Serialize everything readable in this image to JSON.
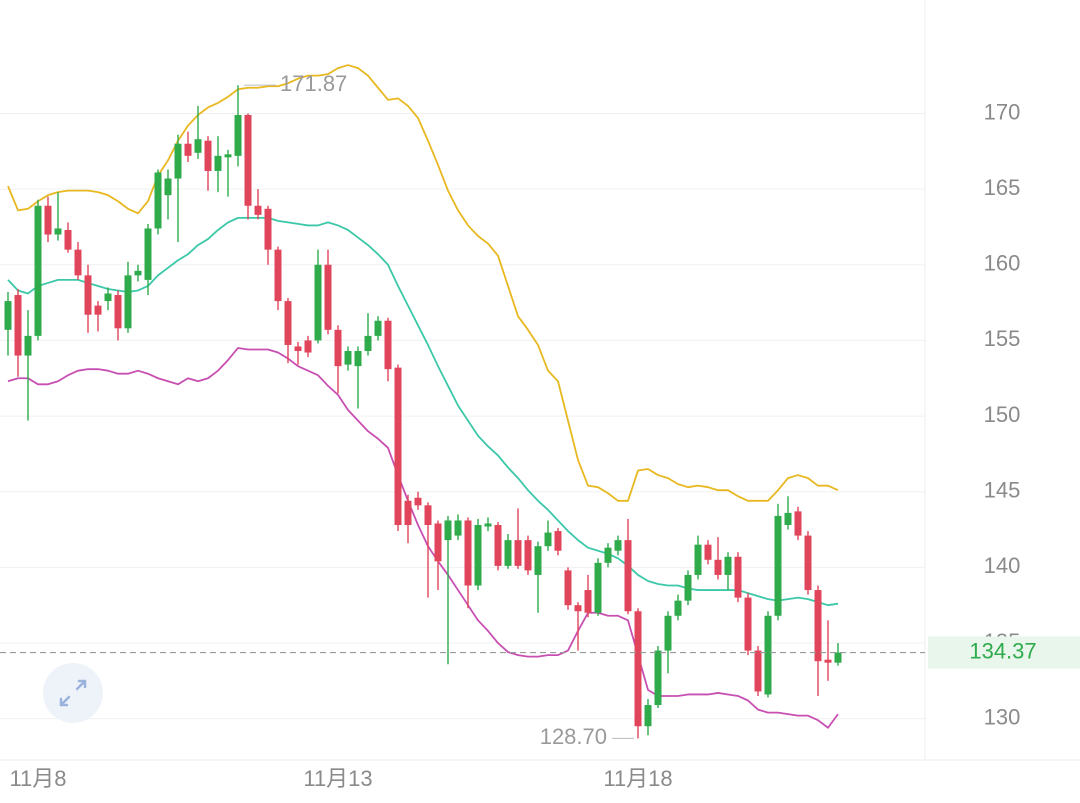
{
  "chart_data": {
    "type": "candlestick",
    "categories": [
      null,
      null,
      null,
      "11月8",
      null,
      null,
      null,
      null,
      null,
      null,
      null,
      null,
      null,
      null,
      null,
      null,
      null,
      null,
      null,
      null,
      null,
      null,
      null,
      null,
      null,
      null,
      null,
      null,
      null,
      null,
      null,
      null,
      null,
      "11月13",
      null,
      null,
      null,
      null,
      null,
      null,
      null,
      null,
      null,
      null,
      null,
      null,
      null,
      null,
      null,
      null,
      null,
      null,
      null,
      null,
      null,
      null,
      null,
      null,
      null,
      null,
      null,
      null,
      null,
      "11月18",
      null,
      null,
      null,
      null,
      null,
      null,
      null,
      null,
      null,
      null,
      null,
      null,
      null,
      null,
      null,
      null,
      null,
      null,
      null,
      null
    ],
    "open": [
      155.7,
      158.0,
      154.0,
      155.3,
      163.9,
      162.0,
      162.3,
      161.0,
      159.3,
      157.3,
      157.6,
      158.0,
      155.8,
      159.3,
      159.0,
      162.4,
      164.6,
      165.7,
      168.0,
      167.4,
      168.2,
      166.2,
      167.1,
      167.2,
      169.9,
      163.9,
      163.7,
      161.0,
      157.6,
      154.6,
      155.0,
      155.0,
      160.0,
      155.7,
      153.4,
      153.3,
      154.3,
      155.3,
      156.3,
      153.2,
      144.4,
      144.6,
      144.1,
      142.9,
      141.8,
      142.1,
      143.1,
      138.8,
      142.7,
      142.8,
      140.1,
      141.8,
      141.8,
      139.5,
      141.4,
      142.4,
      139.8,
      137.5,
      138.5,
      137.0,
      140.3,
      141.1,
      141.8,
      137.1,
      129.5,
      130.9,
      134.5,
      136.8,
      137.8,
      139.5,
      141.5,
      140.5,
      139.5,
      140.7,
      138.0,
      134.5,
      131.6,
      136.8,
      142.8,
      143.7,
      142.1,
      138.5,
      133.9,
      133.7
    ],
    "high": [
      158.2,
      158.4,
      157.0,
      164.3,
      164.5,
      164.8,
      162.8,
      161.5,
      160.0,
      157.6,
      158.5,
      158.3,
      160.2,
      160.0,
      162.7,
      166.3,
      166.3,
      168.6,
      168.8,
      170.5,
      168.5,
      168.5,
      167.6,
      171.87,
      170.0,
      165.0,
      163.9,
      161.2,
      157.8,
      154.9,
      155.3,
      161.0,
      161.0,
      156.0,
      154.6,
      154.6,
      156.8,
      156.6,
      156.5,
      153.4,
      144.8,
      145.0,
      144.3,
      143.1,
      143.4,
      143.5,
      143.3,
      143.2,
      143.3,
      143.0,
      142.2,
      143.9,
      142.1,
      141.7,
      143.1,
      142.6,
      140.0,
      137.7,
      139.5,
      140.6,
      141.6,
      142.1,
      143.2,
      137.3,
      131.3,
      134.8,
      137.1,
      138.2,
      139.8,
      142.1,
      141.8,
      142.0,
      141.0,
      141.0,
      138.3,
      134.8,
      137.1,
      144.2,
      144.7,
      144.0,
      142.4,
      138.8,
      136.5,
      135.0
    ],
    "low": [
      154.0,
      152.6,
      149.7,
      155.0,
      161.5,
      161.6,
      160.8,
      159.0,
      155.5,
      155.6,
      157.0,
      155.0,
      155.5,
      158.9,
      158.0,
      162.0,
      163.0,
      161.5,
      166.8,
      167.0,
      164.9,
      164.8,
      164.5,
      166.5,
      163.0,
      163.0,
      160.0,
      157.0,
      153.5,
      153.4,
      153.9,
      154.8,
      155.4,
      151.5,
      153.0,
      150.5,
      154.0,
      155.0,
      152.3,
      142.4,
      141.6,
      143.8,
      138.0,
      138.5,
      133.6,
      141.8,
      137.3,
      138.5,
      142.4,
      139.8,
      139.9,
      139.9,
      139.5,
      137.0,
      141.1,
      140.8,
      137.2,
      134.5,
      136.7,
      136.8,
      140.0,
      140.8,
      136.9,
      128.7,
      128.9,
      130.7,
      133.0,
      136.5,
      137.5,
      139.2,
      140.2,
      139.2,
      138.5,
      137.7,
      134.2,
      131.5,
      131.4,
      136.5,
      142.5,
      141.8,
      138.2,
      131.5,
      132.5,
      133.5
    ],
    "close": [
      157.6,
      154.0,
      155.3,
      163.9,
      162.0,
      162.4,
      161.0,
      159.3,
      156.7,
      156.7,
      158.1,
      155.8,
      159.3,
      159.6,
      162.4,
      166.1,
      165.7,
      168.0,
      167.2,
      168.3,
      166.2,
      167.2,
      167.3,
      169.9,
      163.9,
      163.3,
      161.0,
      157.6,
      154.7,
      154.3,
      154.2,
      160.0,
      155.7,
      153.3,
      154.3,
      154.3,
      155.3,
      156.3,
      153.1,
      142.8,
      142.8,
      144.1,
      142.8,
      140.4,
      143.1,
      143.1,
      138.8,
      142.8,
      142.9,
      140.1,
      141.8,
      140.1,
      139.8,
      141.4,
      142.3,
      141.1,
      137.5,
      137.1,
      137.0,
      140.3,
      141.3,
      141.8,
      137.1,
      129.5,
      130.9,
      134.5,
      136.8,
      137.8,
      139.5,
      141.5,
      140.5,
      139.5,
      140.7,
      138.0,
      134.5,
      131.8,
      136.8,
      143.4,
      143.6,
      142.1,
      138.5,
      133.8,
      133.7,
      134.37
    ],
    "up_color": "#2fab4c",
    "down_color": "#e0455b",
    "bands": [
      {
        "color": "#e8b820",
        "values": [
          165.2,
          163.6,
          163.7,
          164.2,
          164.6,
          164.8,
          164.9,
          164.9,
          164.9,
          164.8,
          164.6,
          164.2,
          163.7,
          163.4,
          164.2,
          165.9,
          166.9,
          168.2,
          169.2,
          169.9,
          170.4,
          170.7,
          171.1,
          171.6,
          171.7,
          171.7,
          171.8,
          171.8,
          172.0,
          172.3,
          172.5,
          172.5,
          172.6,
          173.0,
          173.2,
          173.0,
          172.5,
          171.7,
          170.9,
          171.0,
          170.5,
          169.7,
          168.2,
          166.6,
          164.9,
          163.6,
          162.6,
          161.9,
          161.4,
          160.6,
          158.6,
          156.6,
          155.7,
          154.7,
          153.0,
          152.3,
          149.7,
          147.1,
          145.4,
          145.3,
          144.9,
          144.4,
          144.4,
          146.4,
          146.5,
          146.1,
          145.9,
          145.5,
          145.3,
          145.4,
          145.3,
          145.1,
          145.1,
          144.7,
          144.4,
          144.4,
          144.4,
          145.1,
          145.9,
          146.1,
          145.9,
          145.4,
          145.4,
          145.1
        ]
      },
      {
        "color": "#3cc8a8",
        "values": [
          159.0,
          158.3,
          158.1,
          158.6,
          158.8,
          159.0,
          159.0,
          159.0,
          158.8,
          158.6,
          158.4,
          158.3,
          158.2,
          158.3,
          158.6,
          159.3,
          159.8,
          160.3,
          160.7,
          161.3,
          161.7,
          162.3,
          162.8,
          163.1,
          163.1,
          163.1,
          163.1,
          162.9,
          162.8,
          162.7,
          162.6,
          162.6,
          162.8,
          162.6,
          162.3,
          161.8,
          161.3,
          160.7,
          160.0,
          158.6,
          157.3,
          156.0,
          154.7,
          153.3,
          152.0,
          150.7,
          149.7,
          148.7,
          148.0,
          147.4,
          146.6,
          145.9,
          145.1,
          144.4,
          143.8,
          143.1,
          142.4,
          141.8,
          141.3,
          141.1,
          140.9,
          140.6,
          140.1,
          139.5,
          139.1,
          138.9,
          138.8,
          138.8,
          138.6,
          138.5,
          138.5,
          138.5,
          138.5,
          138.5,
          138.3,
          138.1,
          137.9,
          137.8,
          137.9,
          138.0,
          137.9,
          137.7,
          137.5,
          137.6
        ]
      },
      {
        "color": "#c84fb2",
        "values": [
          152.3,
          152.5,
          152.5,
          152.1,
          152.1,
          152.3,
          152.7,
          153.0,
          153.1,
          153.1,
          153.0,
          152.8,
          152.8,
          153.0,
          152.8,
          152.5,
          152.3,
          152.1,
          152.5,
          152.3,
          152.5,
          153.0,
          153.7,
          154.5,
          154.4,
          154.4,
          154.4,
          154.2,
          153.8,
          153.3,
          153.0,
          152.7,
          152.0,
          151.4,
          150.4,
          149.7,
          149.0,
          148.5,
          147.9,
          146.1,
          144.4,
          142.8,
          141.4,
          140.4,
          139.5,
          138.5,
          137.5,
          136.5,
          135.8,
          135.0,
          134.4,
          134.2,
          134.1,
          134.1,
          134.2,
          134.2,
          134.5,
          135.8,
          137.0,
          137.0,
          136.8,
          136.8,
          136.5,
          134.2,
          131.9,
          131.5,
          131.5,
          131.5,
          131.6,
          131.6,
          131.6,
          131.7,
          131.6,
          131.5,
          131.2,
          130.6,
          130.4,
          130.4,
          130.3,
          130.2,
          130.2,
          129.9,
          129.4,
          130.3
        ]
      }
    ],
    "ylim": [
      127.4,
      177.5
    ],
    "yticks": [
      130,
      135,
      140,
      145,
      150,
      155,
      160,
      165,
      170
    ],
    "grid": true,
    "last_price": 134.37,
    "max_annotation": 171.87,
    "min_annotation": {
      "value": 128.7,
      "label": "128.70"
    }
  }
}
